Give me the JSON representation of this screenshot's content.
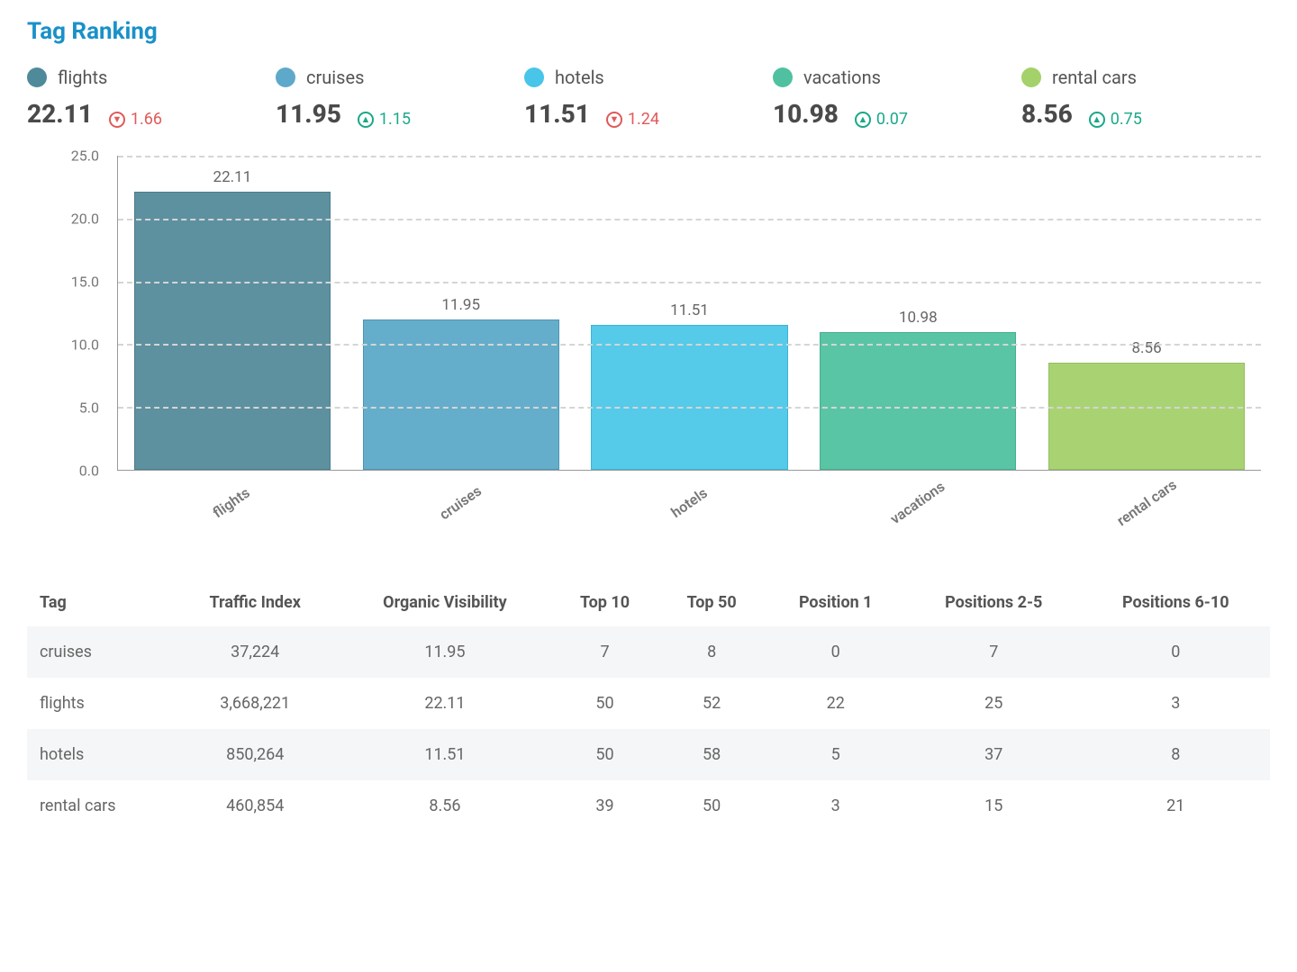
{
  "title": "Tag Ranking",
  "colors": {
    "title": "#1a91c8",
    "text_primary": "#4a4a4a",
    "text_secondary": "#6b7280",
    "grid": "#d5d5d5",
    "axis": "#999999",
    "row_alt": "#f5f6f7",
    "up": "#1aa88a",
    "down": "#e05a5a",
    "background": "#ffffff"
  },
  "summary": [
    {
      "label": "flights",
      "value": "22.11",
      "delta": "1.66",
      "direction": "down",
      "color": "#4f8a9b"
    },
    {
      "label": "cruises",
      "value": "11.95",
      "delta": "1.15",
      "direction": "up",
      "color": "#5ea9c9"
    },
    {
      "label": "hotels",
      "value": "11.51",
      "delta": "1.24",
      "direction": "down",
      "color": "#48c5e8"
    },
    {
      "label": "vacations",
      "value": "10.98",
      "delta": "0.07",
      "direction": "up",
      "color": "#4fc1a0"
    },
    {
      "label": "rental cars",
      "value": "8.56",
      "delta": "0.75",
      "direction": "up",
      "color": "#a4d16a"
    }
  ],
  "chart": {
    "type": "bar",
    "ylim": [
      0,
      25
    ],
    "ytick_step": 5,
    "yticks": [
      "0.0",
      "5.0",
      "10.0",
      "15.0",
      "20.0",
      "25.0"
    ],
    "grid_color": "#d5d5d5",
    "axis_color": "#999999",
    "bar_width_pct": 86,
    "label_fontsize": 16,
    "value_fontsize": 17,
    "series": [
      {
        "label": "flights",
        "value": 22.11,
        "value_text": "22.11",
        "color": "#5d919f",
        "border": "#4b7d8b"
      },
      {
        "label": "cruises",
        "value": 11.95,
        "value_text": "11.95",
        "color": "#64aecb",
        "border": "#4e95b3"
      },
      {
        "label": "hotels",
        "value": 11.51,
        "value_text": "11.51",
        "color": "#55cae9",
        "border": "#3cb4d5"
      },
      {
        "label": "vacations",
        "value": 10.98,
        "value_text": "10.98",
        "color": "#59c5a5",
        "border": "#45af90"
      },
      {
        "label": "rental cars",
        "value": 8.56,
        "value_text": "8.56",
        "color": "#a9d373",
        "border": "#93bf5b"
      }
    ]
  },
  "table": {
    "columns": [
      "Tag",
      "Traffic Index",
      "Organic Visibility",
      "Top 10",
      "Top 50",
      "Position 1",
      "Positions 2-5",
      "Positions 6-10"
    ],
    "rows": [
      [
        "cruises",
        "37,224",
        "11.95",
        "7",
        "8",
        "0",
        "7",
        "0"
      ],
      [
        "flights",
        "3,668,221",
        "22.11",
        "50",
        "52",
        "22",
        "25",
        "3"
      ],
      [
        "hotels",
        "850,264",
        "11.51",
        "50",
        "58",
        "5",
        "37",
        "8"
      ],
      [
        "rental cars",
        "460,854",
        "8.56",
        "39",
        "50",
        "3",
        "15",
        "21"
      ]
    ]
  }
}
